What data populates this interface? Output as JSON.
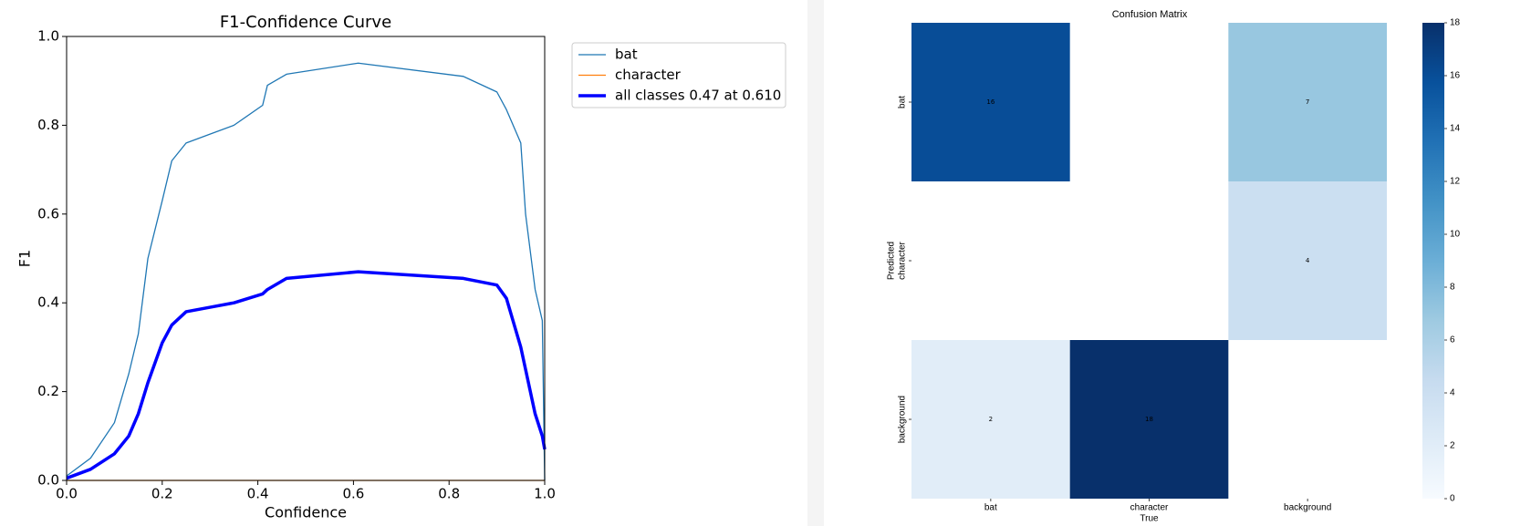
{
  "chart_data": [
    {
      "type": "line",
      "title": "F1-Confidence Curve",
      "xlabel": "Confidence",
      "ylabel": "F1",
      "x": [
        0,
        0.05,
        0.1,
        0.13,
        0.15,
        0.17,
        0.2,
        0.22,
        0.25,
        0.3,
        0.35,
        0.41,
        0.42,
        0.46,
        0.61,
        0.83,
        0.9,
        0.92,
        0.95,
        0.96,
        0.98,
        0.995,
        1.0
      ],
      "series": [
        {
          "name": "bat",
          "color": "#1f77b4",
          "width": 1.3,
          "values": [
            0.01,
            0.05,
            0.13,
            0.24,
            0.33,
            0.5,
            0.63,
            0.72,
            0.76,
            0.78,
            0.8,
            0.845,
            0.89,
            0.915,
            0.94,
            0.91,
            0.875,
            0.835,
            0.76,
            0.6,
            0.43,
            0.36,
            0.0
          ]
        },
        {
          "name": "character",
          "color": "#ff7f0e",
          "width": 1.3,
          "values": [
            0,
            0,
            0,
            0,
            0,
            0,
            0,
            0,
            0,
            0,
            0,
            0,
            0,
            0,
            0,
            0,
            0,
            0,
            0,
            0,
            0,
            0,
            0
          ]
        },
        {
          "name": "all classes 0.47 at 0.610",
          "color": "#0000ff",
          "width": 3.5,
          "values": [
            0.005,
            0.025,
            0.06,
            0.1,
            0.15,
            0.22,
            0.31,
            0.35,
            0.38,
            0.39,
            0.4,
            0.42,
            0.43,
            0.455,
            0.47,
            0.455,
            0.44,
            0.41,
            0.3,
            0.25,
            0.15,
            0.1,
            0.07
          ]
        }
      ],
      "xlim": [
        0,
        1
      ],
      "ylim": [
        0,
        1
      ],
      "xticks": [
        {
          "value": 0,
          "label": "0.0"
        },
        0.2,
        0.4,
        0.6,
        0.8,
        {
          "value": 1,
          "label": "1.0"
        }
      ],
      "yticks": [
        {
          "value": 0,
          "label": "0.0"
        },
        0.2,
        0.4,
        0.6,
        0.8,
        {
          "value": 1,
          "label": "1.0"
        }
      ],
      "legend": "upper-right-outside"
    },
    {
      "type": "heatmap",
      "title": "Confusion Matrix",
      "xlabel": "True",
      "ylabel": "Predicted",
      "x_categories": [
        "bat",
        "character",
        "background"
      ],
      "y_categories": [
        "bat",
        "character",
        "background"
      ],
      "values": [
        [
          16,
          null,
          7
        ],
        [
          null,
          null,
          4
        ],
        [
          2,
          18,
          null
        ]
      ],
      "colormap": [
        "#f7fbff",
        "#deebf7",
        "#c6dbef",
        "#9ecae1",
        "#6baed6",
        "#4292c6",
        "#2171b5",
        "#08519c",
        "#08306b"
      ],
      "clim": [
        0,
        18
      ],
      "cticks": [
        0,
        2,
        4,
        6,
        8,
        10,
        12,
        14,
        16,
        18
      ]
    }
  ]
}
